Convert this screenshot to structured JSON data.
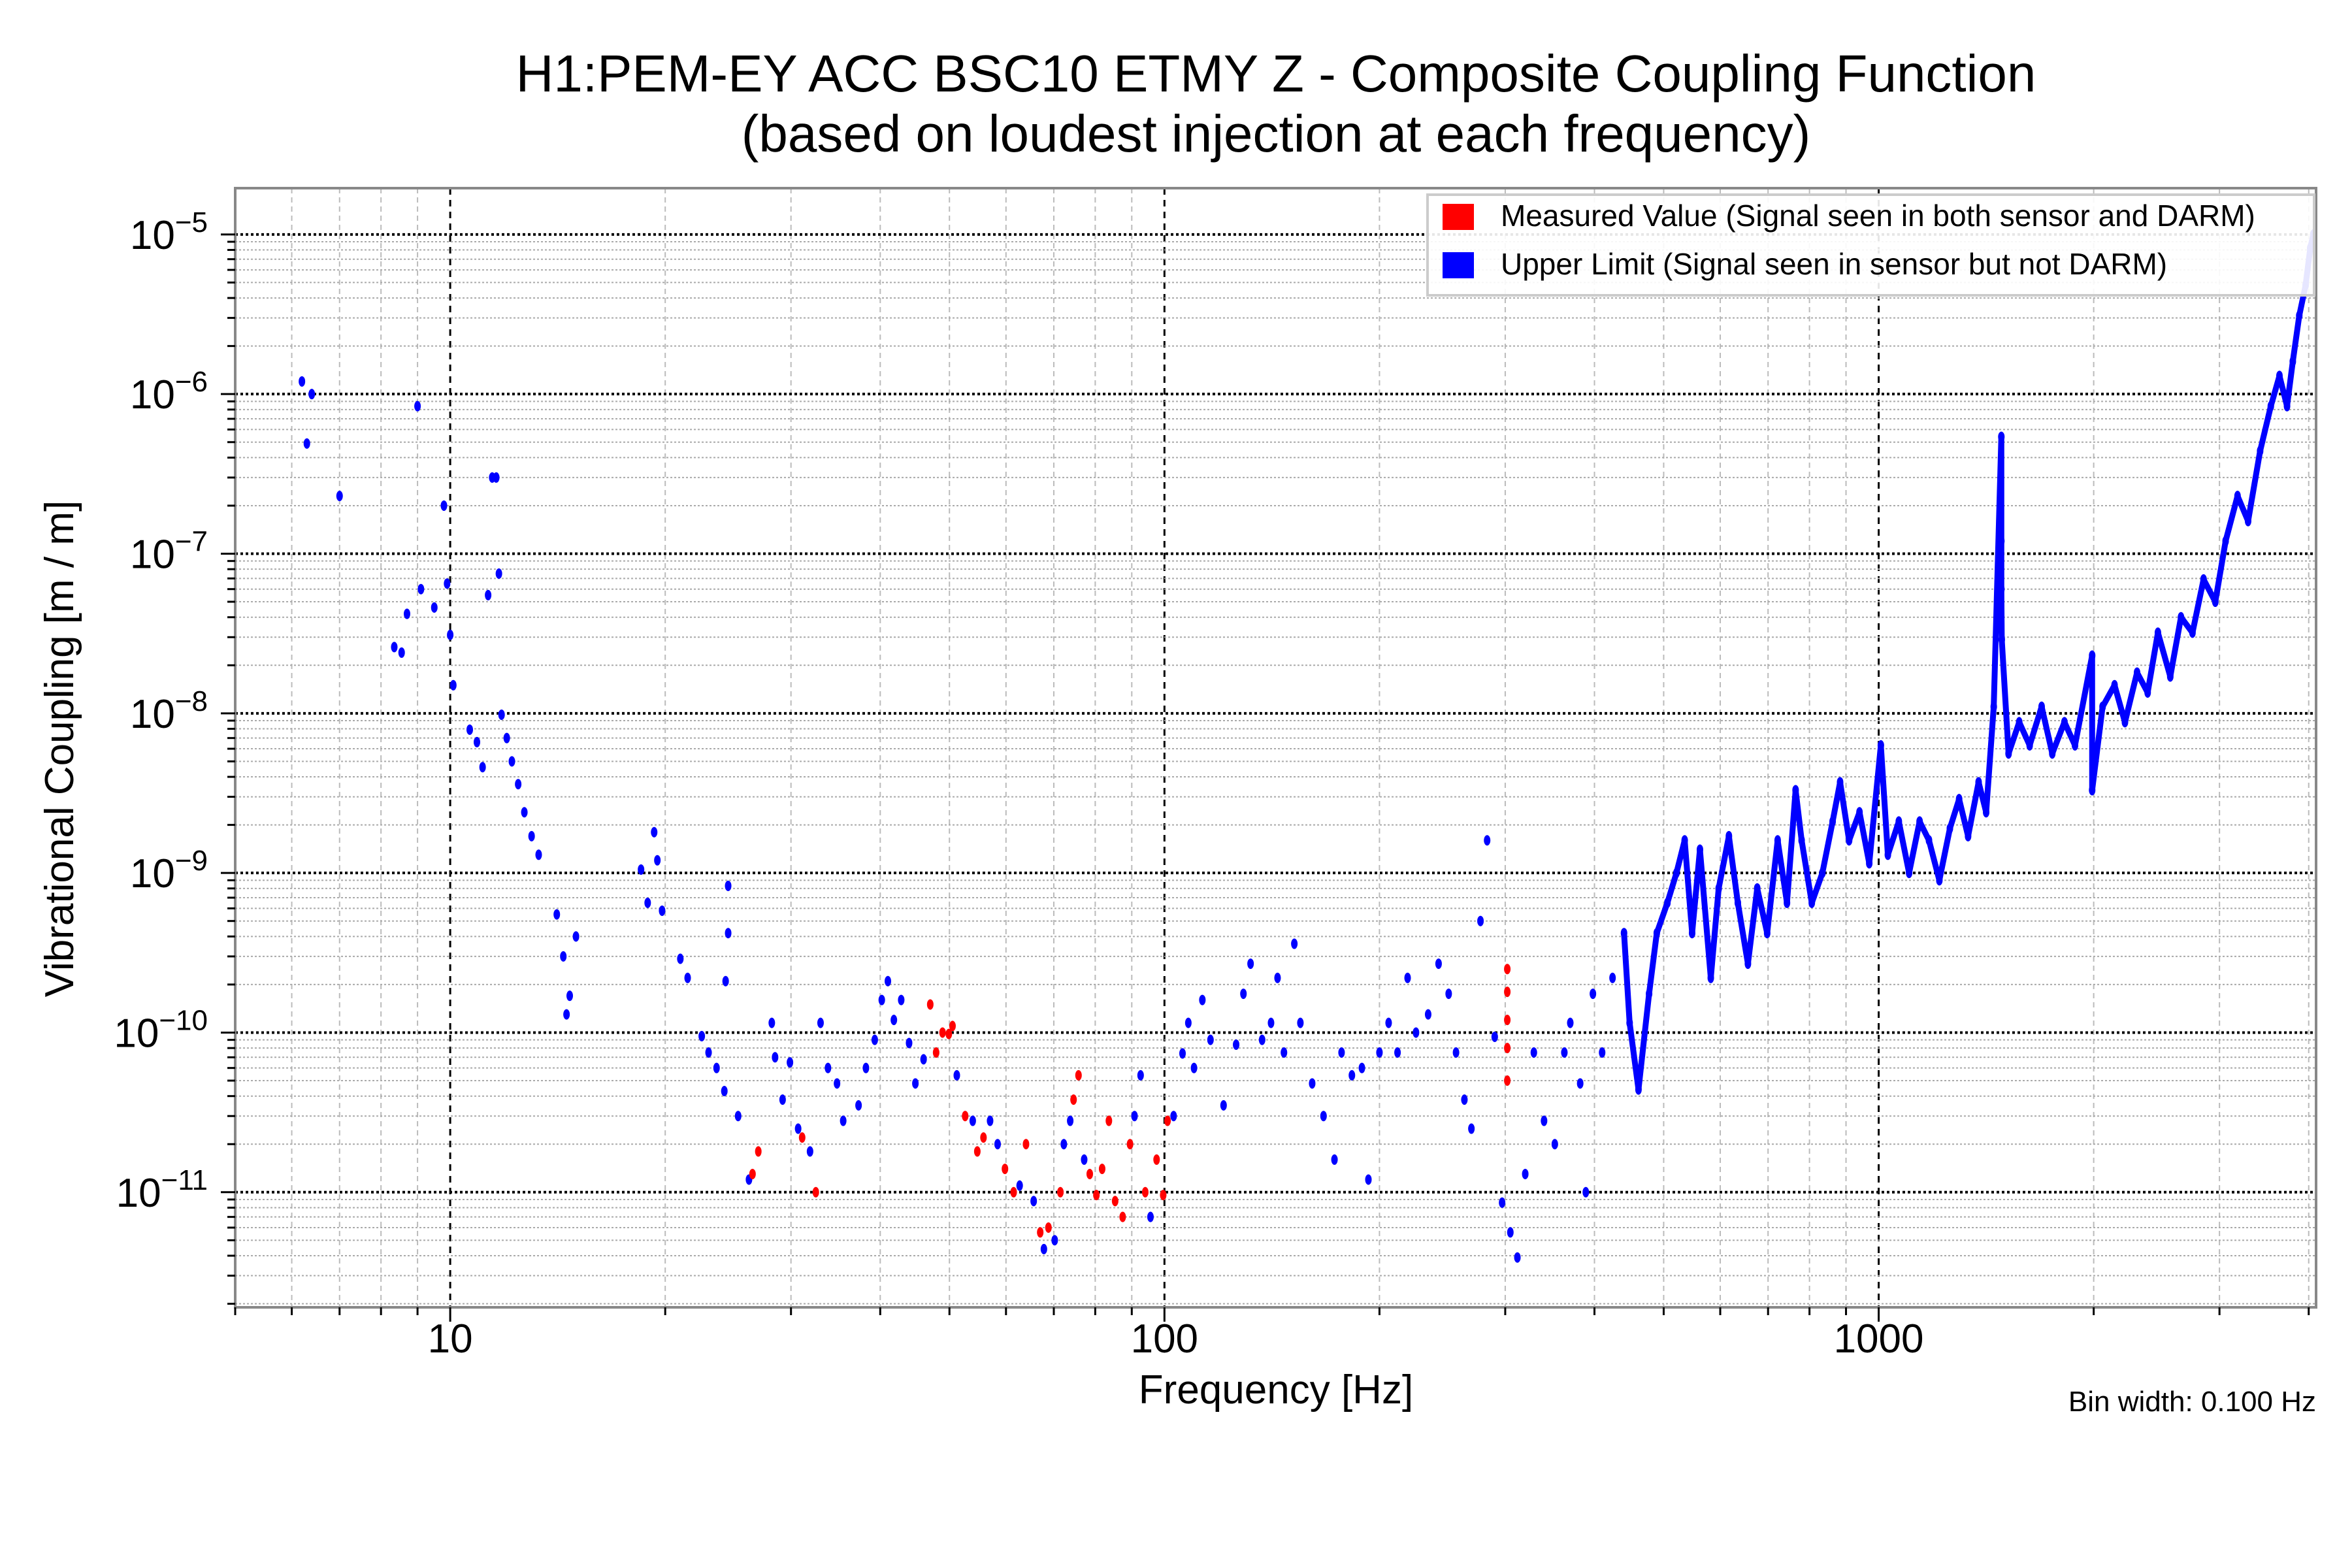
{
  "chart_data": {
    "type": "scatter",
    "title": "H1:PEM-EY ACC BSC10 ETMY Z - Composite Coupling Function",
    "subtitle": "(based on loudest injection at each frequency)",
    "xlabel": "Frequency [Hz]",
    "ylabel": "Vibrational Coupling [m / m]",
    "xscale": "log",
    "yscale": "log",
    "xlim": [
      5,
      4096
    ],
    "ylim": [
      1.9e-12,
      1.95e-05
    ],
    "grid": true,
    "legend_position": "top-right",
    "note": "Bin width: 0.100 Hz",
    "x_ticks": [
      {
        "value": 10,
        "label": "10"
      },
      {
        "value": 100,
        "label": "100"
      },
      {
        "value": 1000,
        "label": "1000"
      }
    ],
    "y_ticks": [
      {
        "value": 1e-05,
        "base": "10",
        "exp": "−5"
      },
      {
        "value": 1e-06,
        "base": "10",
        "exp": "−6"
      },
      {
        "value": 1e-07,
        "base": "10",
        "exp": "−7"
      },
      {
        "value": 1e-08,
        "base": "10",
        "exp": "−8"
      },
      {
        "value": 1e-09,
        "base": "10",
        "exp": "−9"
      },
      {
        "value": 1e-10,
        "base": "10",
        "exp": "−10"
      },
      {
        "value": 1e-11,
        "base": "10",
        "exp": "−11"
      }
    ],
    "series": [
      {
        "name": "Measured Value (Signal seen in both sensor and DARM)",
        "color": "#ff0000",
        "points": [
          [
            26.5,
            1.3e-11
          ],
          [
            27,
            1.8e-11
          ],
          [
            31.1,
            2.2e-11
          ],
          [
            32.5,
            1e-11
          ],
          [
            47,
            1.5e-10
          ],
          [
            47.9,
            7.5e-11
          ],
          [
            48.9,
            1e-10
          ],
          [
            49.9,
            9.8e-11
          ],
          [
            50.5,
            1.1e-10
          ],
          [
            52.6,
            3e-11
          ],
          [
            54.7,
            1.8e-11
          ],
          [
            55.8,
            2.2e-11
          ],
          [
            59.8,
            1.4e-11
          ],
          [
            61.5,
            1e-11
          ],
          [
            64,
            2e-11
          ],
          [
            67,
            5.6e-12
          ],
          [
            68.8,
            6e-12
          ],
          [
            71.5,
            1e-11
          ],
          [
            74.6,
            3.8e-11
          ],
          [
            75.8,
            5.4e-11
          ],
          [
            78.6,
            1.3e-11
          ],
          [
            80.3,
            9.6e-12
          ],
          [
            81.8,
            1.4e-11
          ],
          [
            83.6,
            2.8e-11
          ],
          [
            85.3,
            8.8e-12
          ],
          [
            87.4,
            7e-12
          ],
          [
            89.5,
            2e-11
          ],
          [
            94,
            1e-11
          ],
          [
            97.5,
            1.6e-11
          ],
          [
            99.6,
            9.6e-12
          ],
          [
            101,
            2.8e-11
          ],
          [
            302,
            2.5e-10
          ],
          [
            302,
            1.8e-10
          ],
          [
            302,
            1.2e-10
          ],
          [
            302,
            8e-11
          ],
          [
            302,
            5e-11
          ]
        ]
      },
      {
        "name": "Upper Limit (Signal seen in sensor but not DARM)",
        "color": "#0000ff",
        "points": [
          [
            6.2,
            1.2e-06
          ],
          [
            6.3,
            4.9e-07
          ],
          [
            6.4,
            1e-06
          ],
          [
            7.0,
            2.3e-07
          ],
          [
            8.35,
            2.6e-08
          ],
          [
            8.55,
            2.4e-08
          ],
          [
            8.7,
            4.2e-08
          ],
          [
            9.0,
            8.4e-07
          ],
          [
            9.1,
            6e-08
          ],
          [
            9.5,
            4.6e-08
          ],
          [
            9.8,
            2e-07
          ],
          [
            9.9,
            6.5e-08
          ],
          [
            10,
            3.1e-08
          ],
          [
            10.1,
            1.5e-08
          ],
          [
            10.65,
            7.9e-09
          ],
          [
            10.9,
            6.6e-09
          ],
          [
            11.1,
            4.6e-09
          ],
          [
            11.3,
            5.5e-08
          ],
          [
            11.45,
            3e-07
          ],
          [
            11.6,
            3e-07
          ],
          [
            11.7,
            7.5e-08
          ],
          [
            11.8,
            9.8e-09
          ],
          [
            12.0,
            7e-09
          ],
          [
            12.2,
            5e-09
          ],
          [
            12.45,
            3.6e-09
          ],
          [
            12.7,
            2.4e-09
          ],
          [
            13.0,
            1.7e-09
          ],
          [
            13.3,
            1.3e-09
          ],
          [
            14.1,
            5.5e-10
          ],
          [
            14.4,
            3e-10
          ],
          [
            14.55,
            1.3e-10
          ],
          [
            14.7,
            1.7e-10
          ],
          [
            15.0,
            4e-10
          ],
          [
            18.5,
            1.05e-09
          ],
          [
            18.9,
            6.5e-10
          ],
          [
            19.3,
            1.8e-09
          ],
          [
            19.5,
            1.2e-09
          ],
          [
            19.8,
            5.8e-10
          ],
          [
            21.0,
            2.9e-10
          ],
          [
            21.5,
            2.2e-10
          ],
          [
            22.5,
            9.5e-11
          ],
          [
            23,
            7.5e-11
          ],
          [
            23.6,
            6e-11
          ],
          [
            24.2,
            4.3e-11
          ],
          [
            24.5,
            8.3e-10
          ],
          [
            24.5,
            4.2e-10
          ],
          [
            24.3,
            2.1e-10
          ],
          [
            25.3,
            3e-11
          ],
          [
            26.2,
            1.2e-11
          ],
          [
            28.2,
            1.15e-10
          ],
          [
            28.5,
            7e-11
          ],
          [
            29.2,
            3.8e-11
          ],
          [
            29.9,
            6.5e-11
          ],
          [
            30.7,
            2.5e-11
          ],
          [
            31.9,
            1.8e-11
          ],
          [
            33,
            1.15e-10
          ],
          [
            33.8,
            6e-11
          ],
          [
            34.8,
            4.8e-11
          ],
          [
            35.5,
            2.8e-11
          ],
          [
            37.3,
            3.5e-11
          ],
          [
            38.2,
            6e-11
          ],
          [
            39.3,
            9e-11
          ],
          [
            40.2,
            1.6e-10
          ],
          [
            41.0,
            2.1e-10
          ],
          [
            41.8,
            1.2e-10
          ],
          [
            42.8,
            1.6e-10
          ],
          [
            43.9,
            8.6e-11
          ],
          [
            44.8,
            4.8e-11
          ],
          [
            46.0,
            6.8e-11
          ],
          [
            51.2,
            5.4e-11
          ],
          [
            53.9,
            2.8e-11
          ],
          [
            57.0,
            2.8e-11
          ],
          [
            58.4,
            2e-11
          ],
          [
            62.7,
            1.1e-11
          ],
          [
            65.6,
            8.8e-12
          ],
          [
            67.8,
            4.4e-12
          ],
          [
            70.2,
            5e-12
          ],
          [
            72.3,
            2e-11
          ],
          [
            73.8,
            2.8e-11
          ],
          [
            77.2,
            1.6e-11
          ],
          [
            90.8,
            3e-11
          ],
          [
            92.6,
            5.4e-11
          ],
          [
            95.6,
            7e-12
          ],
          [
            103,
            3e-11
          ],
          [
            106,
            7.4e-11
          ],
          [
            108,
            1.15e-10
          ],
          [
            110,
            6e-11
          ],
          [
            113,
            1.6e-10
          ],
          [
            116,
            9e-11
          ],
          [
            121,
            3.5e-11
          ],
          [
            126,
            8.4e-11
          ],
          [
            129,
            1.75e-10
          ],
          [
            132,
            2.7e-10
          ],
          [
            137,
            9e-11
          ],
          [
            141,
            1.15e-10
          ],
          [
            144,
            2.2e-10
          ],
          [
            147,
            7.5e-11
          ],
          [
            152,
            3.6e-10
          ],
          [
            155,
            1.15e-10
          ],
          [
            161,
            4.8e-11
          ],
          [
            167,
            3e-11
          ],
          [
            173,
            1.6e-11
          ],
          [
            177,
            7.5e-11
          ],
          [
            183,
            5.4e-11
          ],
          [
            189,
            6e-11
          ],
          [
            193,
            1.2e-11
          ],
          [
            200,
            7.5e-11
          ],
          [
            206,
            1.15e-10
          ],
          [
            212,
            7.5e-11
          ],
          [
            219,
            2.2e-10
          ],
          [
            225,
            1e-10
          ],
          [
            234,
            1.3e-10
          ],
          [
            242,
            2.7e-10
          ],
          [
            250,
            1.75e-10
          ],
          [
            256,
            7.5e-11
          ],
          [
            263,
            3.8e-11
          ],
          [
            269,
            2.5e-11
          ],
          [
            277,
            5e-10
          ],
          [
            283,
            1.6e-09
          ],
          [
            290,
            9.4e-11
          ],
          [
            297,
            8.6e-12
          ],
          [
            305,
            5.6e-12
          ],
          [
            312,
            3.9e-12
          ],
          [
            320,
            1.3e-11
          ],
          [
            329,
            7.5e-11
          ],
          [
            340,
            2.8e-11
          ],
          [
            352,
            2e-11
          ],
          [
            363,
            7.5e-11
          ],
          [
            370,
            1.15e-10
          ],
          [
            382,
            4.8e-11
          ],
          [
            389,
            1e-11
          ],
          [
            398,
            1.75e-10
          ],
          [
            410,
            7.5e-11
          ],
          [
            424,
            2.2e-10
          ],
          [
            440,
            4.2e-10
          ],
          [
            448,
            1.15e-10
          ],
          [
            461,
            4.4e-11
          ],
          [
            477,
            1.75e-10
          ],
          [
            489,
            4.2e-10
          ],
          [
            506,
            6.5e-10
          ],
          [
            521,
            1e-09
          ],
          [
            535,
            1.6e-09
          ],
          [
            548,
            4.2e-10
          ],
          [
            562,
            1.4e-09
          ],
          [
            582,
            2.2e-10
          ],
          [
            597,
            8e-10
          ],
          [
            617,
            1.7e-09
          ],
          [
            635,
            6.5e-10
          ],
          [
            656,
            2.7e-10
          ],
          [
            676,
            8e-10
          ],
          [
            698,
            4.2e-10
          ],
          [
            722,
            1.6e-09
          ],
          [
            744,
            6.5e-10
          ],
          [
            765,
            3.3e-09
          ],
          [
            780,
            1.6e-09
          ],
          [
            806,
            6.5e-10
          ],
          [
            834,
            1e-09
          ],
          [
            862,
            2.1e-09
          ],
          [
            883,
            3.7e-09
          ],
          [
            909,
            1.6e-09
          ],
          [
            940,
            2.4e-09
          ],
          [
            970,
            1.15e-09
          ],
          [
            1007,
            6.3e-09
          ],
          [
            1030,
            1.3e-09
          ],
          [
            1067,
            2.1e-09
          ],
          [
            1103,
            1e-09
          ],
          [
            1141,
            2.1e-09
          ],
          [
            1176,
            1.6e-09
          ],
          [
            1216,
            9e-10
          ],
          [
            1258,
            1.9e-09
          ],
          [
            1296,
            2.9e-09
          ],
          [
            1334,
            1.7e-09
          ],
          [
            1380,
            3.7e-09
          ],
          [
            1414,
            2.4e-09
          ],
          [
            1449,
            1.1e-08
          ],
          [
            1485,
            5.4e-07
          ],
          [
            1485,
            1.2e-07
          ],
          [
            1485,
            6e-08
          ],
          [
            1487,
            2.9e-08
          ],
          [
            1520,
            5.6e-09
          ],
          [
            1573,
            8.8e-09
          ],
          [
            1627,
            6.3e-09
          ],
          [
            1691,
            1.1e-08
          ],
          [
            1750,
            5.6e-09
          ],
          [
            1820,
            8.8e-09
          ],
          [
            1883,
            6.3e-09
          ],
          [
            1990,
            2.3e-08
          ],
          [
            1990,
            3.3e-09
          ],
          [
            2058,
            1.1e-08
          ],
          [
            2139,
            1.5e-08
          ],
          [
            2212,
            8.8e-09
          ],
          [
            2300,
            1.8e-08
          ],
          [
            2380,
            1.35e-08
          ],
          [
            2460,
            3.2e-08
          ],
          [
            2560,
            1.7e-08
          ],
          [
            2650,
            4e-08
          ],
          [
            2750,
            3.2e-08
          ],
          [
            2850,
            6.9e-08
          ],
          [
            2960,
            5e-08
          ],
          [
            3060,
            1.2e-07
          ],
          [
            3180,
            2.3e-07
          ],
          [
            3290,
            1.6e-07
          ],
          [
            3420,
            4.4e-07
          ],
          [
            3540,
            8.4e-07
          ],
          [
            3640,
            1.3e-06
          ],
          [
            3730,
            8.4e-07
          ],
          [
            3800,
            1.6e-06
          ],
          [
            3880,
            3.1e-06
          ],
          [
            3960,
            4.8e-06
          ],
          [
            4020,
            8.2e-06
          ],
          [
            4060,
            1e-05
          ]
        ]
      }
    ]
  }
}
